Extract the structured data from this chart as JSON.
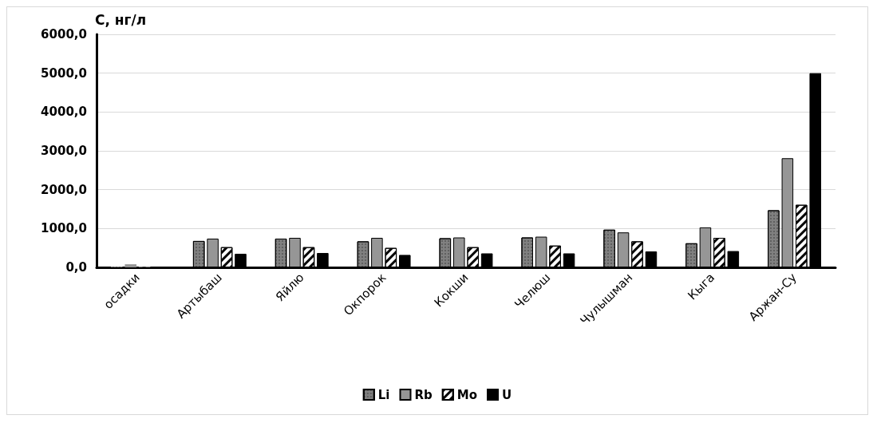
{
  "chart_data": {
    "type": "bar",
    "ylabel": "С, нг/л",
    "categories": [
      "осадки",
      "Артыбаш",
      "Яйлю",
      "Окпорок",
      "Кокши",
      "Челюш",
      "Чулышман",
      "Кыга",
      "Аржан-Су"
    ],
    "series": [
      {
        "name": "Li",
        "color": "#808080",
        "values": [
          20,
          680,
          740,
          670,
          750,
          770,
          970,
          620,
          1470
        ]
      },
      {
        "name": "Rb",
        "color": "#969696",
        "values": [
          80,
          740,
          760,
          760,
          770,
          790,
          900,
          1030,
          2810
        ]
      },
      {
        "name": "Mo",
        "color": "#ffffff",
        "values": [
          10,
          520,
          520,
          500,
          520,
          560,
          670,
          760,
          1610
        ]
      },
      {
        "name": "U",
        "color": "#000000",
        "values": [
          10,
          350,
          370,
          320,
          360,
          360,
          410,
          420,
          5000
        ]
      }
    ],
    "ylim": [
      0,
      6000
    ],
    "yticks": [
      {
        "value": 0,
        "label": "0,0"
      },
      {
        "value": 1000,
        "label": "1000,0"
      },
      {
        "value": 2000,
        "label": "2000,0"
      },
      {
        "value": 3000,
        "label": "3000,0"
      },
      {
        "value": 4000,
        "label": "4000,0"
      },
      {
        "value": 5000,
        "label": "5000,0"
      },
      {
        "value": 6000,
        "label": "6000,0"
      }
    ],
    "grid": "y",
    "legend": "bottom"
  }
}
